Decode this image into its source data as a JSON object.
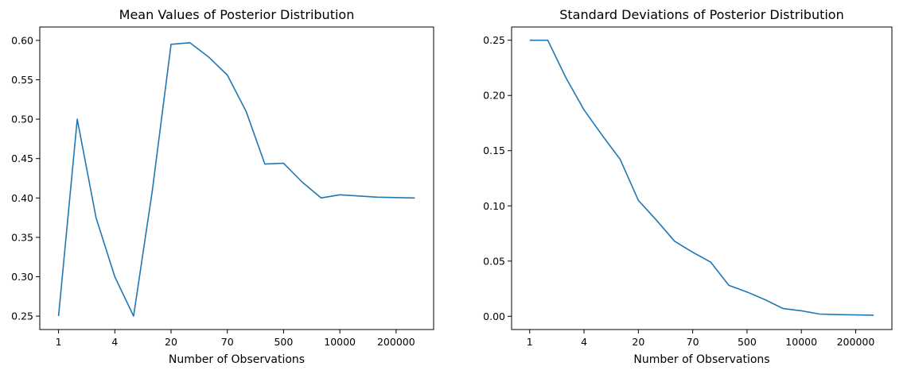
{
  "chart_data": [
    {
      "type": "line",
      "title": "Mean Values of Posterior Distribution",
      "xlabel": "Number of Observations",
      "ylabel": "",
      "x_tick_labels": [
        "1",
        "4",
        "20",
        "70",
        "500",
        "10000",
        "200000"
      ],
      "x_tick_positions": [
        0,
        3,
        6,
        9,
        12,
        15,
        18
      ],
      "xlim": [
        -1.0,
        20.0
      ],
      "ylim": [
        0.233,
        0.617
      ],
      "y_ticks": [
        0.25,
        0.3,
        0.35,
        0.4,
        0.45,
        0.5,
        0.55,
        0.6
      ],
      "y_tick_labels": [
        "0.25",
        "0.30",
        "0.35",
        "0.40",
        "0.45",
        "0.50",
        "0.55",
        "0.60"
      ],
      "grid": false,
      "series": [
        {
          "x": [
            0,
            1,
            2,
            3,
            4,
            5,
            6,
            7,
            8,
            9,
            10,
            11,
            12,
            13,
            14,
            15,
            17,
            19
          ],
          "values": [
            0.25,
            0.5,
            0.375,
            0.3,
            0.25,
            0.409,
            0.595,
            0.597,
            0.579,
            0.556,
            0.51,
            0.443,
            0.444,
            0.42,
            0.4,
            0.404,
            0.401,
            0.4
          ]
        }
      ]
    },
    {
      "type": "line",
      "title": "Standard Deviations of Posterior Distribution",
      "xlabel": "Number of Observations",
      "ylabel": "",
      "x_tick_labels": [
        "1",
        "4",
        "20",
        "70",
        "500",
        "10000",
        "200000"
      ],
      "x_tick_positions": [
        0,
        3,
        6,
        9,
        12,
        15,
        18
      ],
      "xlim": [
        -1.0,
        20.0
      ],
      "ylim": [
        -0.012,
        0.262
      ],
      "y_ticks": [
        0.0,
        0.05,
        0.1,
        0.15,
        0.2,
        0.25
      ],
      "y_tick_labels": [
        "0.00",
        "0.05",
        "0.10",
        "0.15",
        "0.20",
        "0.25"
      ],
      "grid": false,
      "series": [
        {
          "x": [
            0,
            1,
            2,
            3,
            4,
            5,
            6,
            7,
            8,
            9,
            10,
            11,
            12,
            13,
            14,
            15,
            16,
            17,
            19
          ],
          "values": [
            0.25,
            0.25,
            0.216,
            0.187,
            0.164,
            0.142,
            0.105,
            0.087,
            0.068,
            0.058,
            0.049,
            0.028,
            0.022,
            0.015,
            0.007,
            0.005,
            0.002,
            0.0015,
            0.001
          ]
        }
      ]
    }
  ]
}
